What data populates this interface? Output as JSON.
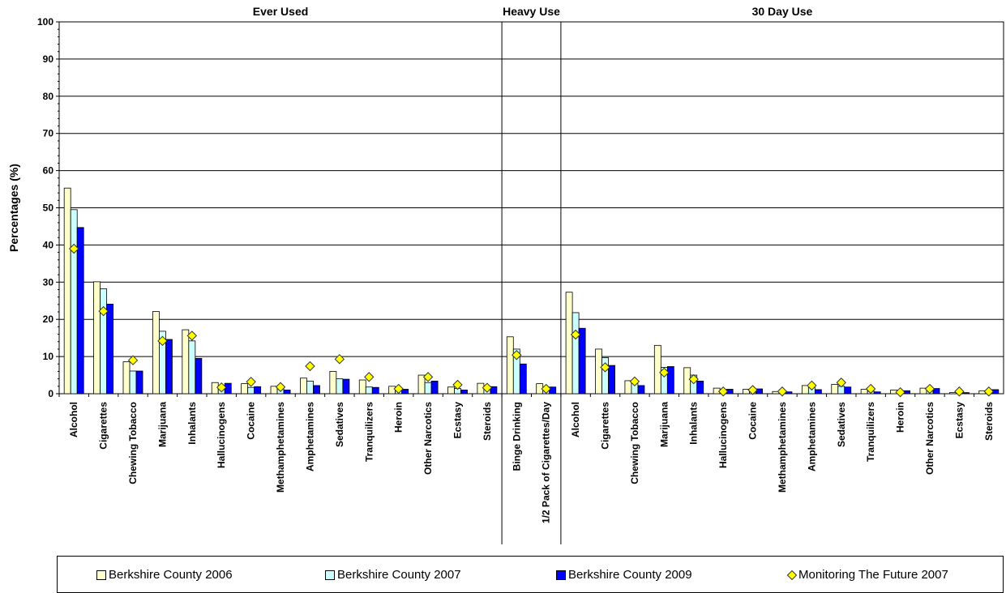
{
  "chart_data": {
    "type": "bar",
    "ylabel": "Percentages (%)",
    "ylim": [
      0,
      100
    ],
    "yticks": [
      0,
      10,
      20,
      30,
      40,
      50,
      60,
      70,
      80,
      90,
      100
    ],
    "grid": true,
    "legend_position": "bottom",
    "sections": [
      {
        "title": "Ever Used",
        "count": 15
      },
      {
        "title": "Heavy Use",
        "count": 2
      },
      {
        "title": "30 Day Use",
        "count": 15
      }
    ],
    "categories": [
      "Alcohol",
      "Cigarettes",
      "Chewing Tobacco",
      "Marijuana",
      "Inhalants",
      "Hallucinogens",
      "Cocaine",
      "Methamphetamines",
      "Amphetamines",
      "Sedatives",
      "Tranquilizers",
      "Heroin",
      "Other Narcotics",
      "Ecstasy",
      "Steroids",
      "Binge Drinking",
      "1/2 Pack of Cigarettes/Day",
      "Alcohol",
      "Cigarettes",
      "Chewing Tobacco",
      "Marijuana",
      "Inhalants",
      "Hallucinogens",
      "Cocaine",
      "Methamphetamines",
      "Amphetamines",
      "Sedatives",
      "Tranquilizers",
      "Heroin",
      "Other Narcotics",
      "Ecstasy",
      "Steroids"
    ],
    "series": [
      {
        "name": "Berkshire County 2006",
        "kind": "bar",
        "color": "#FFFFCC",
        "values": [
          55.3,
          30.1,
          8.6,
          22.1,
          17.2,
          3.0,
          2.7,
          2.0,
          4.2,
          6.0,
          3.7,
          2.0,
          5.0,
          1.8,
          2.8,
          15.3,
          2.7,
          27.3,
          12.0,
          3.5,
          13.0,
          7.0,
          1.5,
          1.2,
          0.6,
          2.2,
          2.5,
          1.2,
          1.0,
          1.5,
          0.3,
          0.8
        ]
      },
      {
        "name": "Berkshire County 2007",
        "kind": "bar",
        "color": "#CCFFFF",
        "values": [
          49.5,
          28.2,
          6.1,
          16.8,
          14.2,
          2.1,
          1.7,
          1.5,
          3.4,
          4.0,
          1.8,
          1.4,
          3.0,
          1.4,
          2.0,
          12.0,
          1.5,
          21.8,
          9.7,
          3.2,
          7.1,
          5.0,
          1.0,
          0.8,
          0.4,
          2.0,
          2.0,
          0.7,
          0.6,
          1.2,
          0.3,
          0.6
        ]
      },
      {
        "name": "Berkshire County 2009",
        "kind": "bar",
        "color": "#0000FF",
        "values": [
          44.7,
          24.1,
          6.1,
          14.6,
          9.5,
          2.8,
          1.9,
          1.0,
          2.2,
          3.9,
          1.7,
          1.2,
          3.4,
          1.0,
          1.9,
          8.0,
          1.8,
          17.6,
          7.6,
          2.2,
          7.3,
          3.4,
          1.2,
          1.3,
          0.5,
          1.1,
          1.8,
          0.5,
          0.8,
          1.4,
          0.3,
          1.1
        ]
      },
      {
        "name": "Monitoring The Future 2007",
        "kind": "marker",
        "color": "#FFFF00",
        "values": [
          39.0,
          22.2,
          9.0,
          14.2,
          15.6,
          1.7,
          3.2,
          1.8,
          7.4,
          9.3,
          4.5,
          1.3,
          4.5,
          2.4,
          1.6,
          10.4,
          1.3,
          15.9,
          7.1,
          3.3,
          5.7,
          3.9,
          0.6,
          1.0,
          0.6,
          2.2,
          3.0,
          1.3,
          0.4,
          1.3,
          0.6,
          0.6
        ]
      }
    ]
  }
}
